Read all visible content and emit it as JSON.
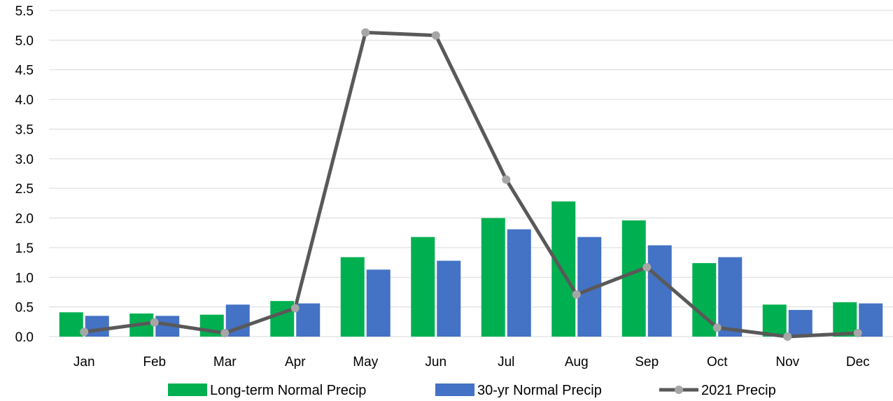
{
  "chart_data": {
    "type": "bar",
    "title": "",
    "xlabel": "",
    "ylabel": "",
    "ylim": [
      0,
      5.5
    ],
    "ytick_step": 0.5,
    "grid": true,
    "legend_position": "bottom",
    "categories": [
      "Jan",
      "Feb",
      "Mar",
      "Apr",
      "May",
      "Jun",
      "Jul",
      "Aug",
      "Sep",
      "Oct",
      "Nov",
      "Dec"
    ],
    "series": [
      {
        "name": "Long-term Normal Precip",
        "kind": "bar",
        "color": "#00b050",
        "values": [
          0.41,
          0.39,
          0.37,
          0.6,
          1.34,
          1.68,
          2.0,
          2.28,
          1.96,
          1.24,
          0.54,
          0.58
        ]
      },
      {
        "name": "30-yr Normal Precip",
        "kind": "bar",
        "color": "#4472c4",
        "values": [
          0.35,
          0.35,
          0.54,
          0.56,
          1.13,
          1.28,
          1.81,
          1.68,
          1.54,
          1.34,
          0.45,
          0.56
        ]
      },
      {
        "name": "2021 Precip",
        "kind": "line",
        "color": "#595959",
        "marker_color": "#a6a6a6",
        "values": [
          0.08,
          0.24,
          0.06,
          0.48,
          5.13,
          5.08,
          2.65,
          0.71,
          1.17,
          0.15,
          0.0,
          0.06
        ]
      }
    ]
  }
}
